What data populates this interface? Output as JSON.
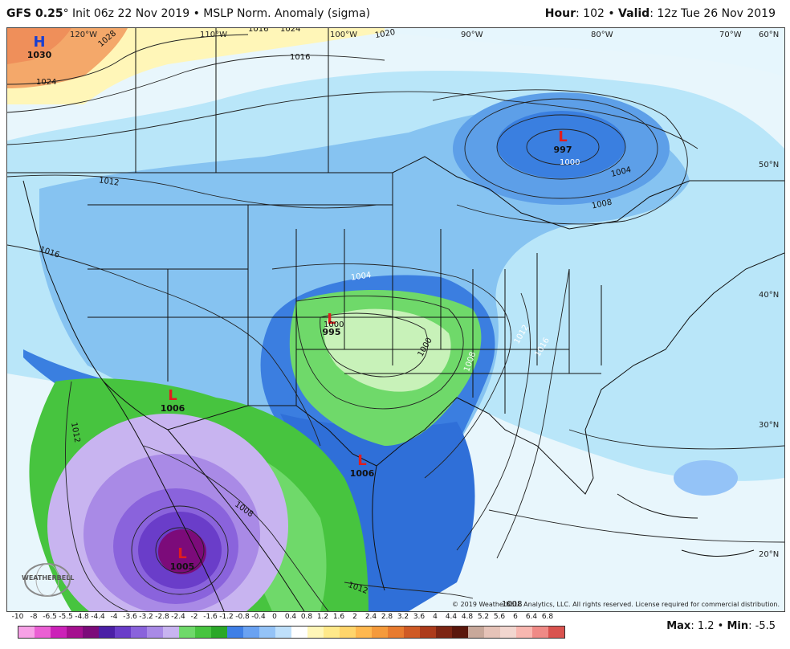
{
  "header": {
    "model": "GFS 0.25",
    "degree": "°",
    "init": " Init 06z 22 Nov 2019",
    "sep": " • ",
    "product": "MSLP Norm. Anomaly (sigma)",
    "hour_label": "Hour",
    "hour_value": ": 102 • ",
    "valid_label": "Valid",
    "valid_value": ": 12z Tue 26 Nov 2019"
  },
  "map": {
    "lon_labels": [
      "120°W",
      "110°W",
      "100°W",
      "90°W",
      "80°W",
      "70°W",
      "60°N"
    ],
    "lat_labels": [
      "50°N",
      "40°N",
      "30°N",
      "20°N"
    ],
    "pressure_systems": [
      {
        "type": "H",
        "pressure": "1030",
        "color": "#1a3fd1"
      },
      {
        "type": "L",
        "pressure": "997",
        "color": "#e11d1d"
      },
      {
        "type": "L",
        "pressure": "995",
        "color": "#e11d1d"
      },
      {
        "type": "L",
        "pressure": "1006",
        "color": "#e11d1d"
      },
      {
        "type": "L",
        "pressure": "1006",
        "color": "#e11d1d"
      },
      {
        "type": "L",
        "pressure": "1005",
        "color": "#e11d1d"
      }
    ],
    "isobar_labels": [
      "1028",
      "1024",
      "1020",
      "1016",
      "1024",
      "1012",
      "1016",
      "1012",
      "1008",
      "1004",
      "1000",
      "1004",
      "1000",
      "1008",
      "1012",
      "1016",
      "1008",
      "1012",
      "1008",
      "1000",
      "1016"
    ],
    "copyright": "© 2019 WeatherBELL Analytics, LLC. All rights reserved. License required for commercial distribution.",
    "logo_text": "WEATHERBELL"
  },
  "legend": {
    "ticks": [
      "-10",
      "-8",
      "-6.5",
      "-5.5",
      "-4.8",
      "-4.4",
      "-4",
      "-3.6",
      "-3.2",
      "-2.8",
      "-2.4",
      "-2",
      "-1.6",
      "-1.2",
      "-0.8",
      "-0.4",
      "0",
      "0.4",
      "0.8",
      "1.2",
      "1.6",
      "2",
      "2.4",
      "2.8",
      "3.2",
      "3.6",
      "4",
      "4.4",
      "4.8",
      "5.2",
      "5.6",
      "6",
      "6.4",
      "6.8"
    ],
    "colors": [
      "#f7a1e6",
      "#ea5fd3",
      "#cc22b8",
      "#a5108f",
      "#7c0b7a",
      "#4b1fa6",
      "#6a3dc9",
      "#8a63dc",
      "#a98ae6",
      "#c8b4f0",
      "#6fd96a",
      "#47c43f",
      "#2ba829",
      "#3f7fe6",
      "#6aa2f2",
      "#94c3f7",
      "#bfe0fb",
      "#ffffff",
      "#fff6b8",
      "#ffe98a",
      "#ffd56b",
      "#ffb84f",
      "#f59a3b",
      "#e87b2f",
      "#cf5a25",
      "#ad3b1b",
      "#7d2513",
      "#5a170c",
      "#c8a89a",
      "#e6c3b8",
      "#f2d6cf",
      "#f8b7b0",
      "#ef8a86",
      "#d9534f"
    ],
    "max_label": "Max",
    "max_value": ": 1.2 • ",
    "min_label": "Min",
    "min_value": ": -5.5"
  }
}
